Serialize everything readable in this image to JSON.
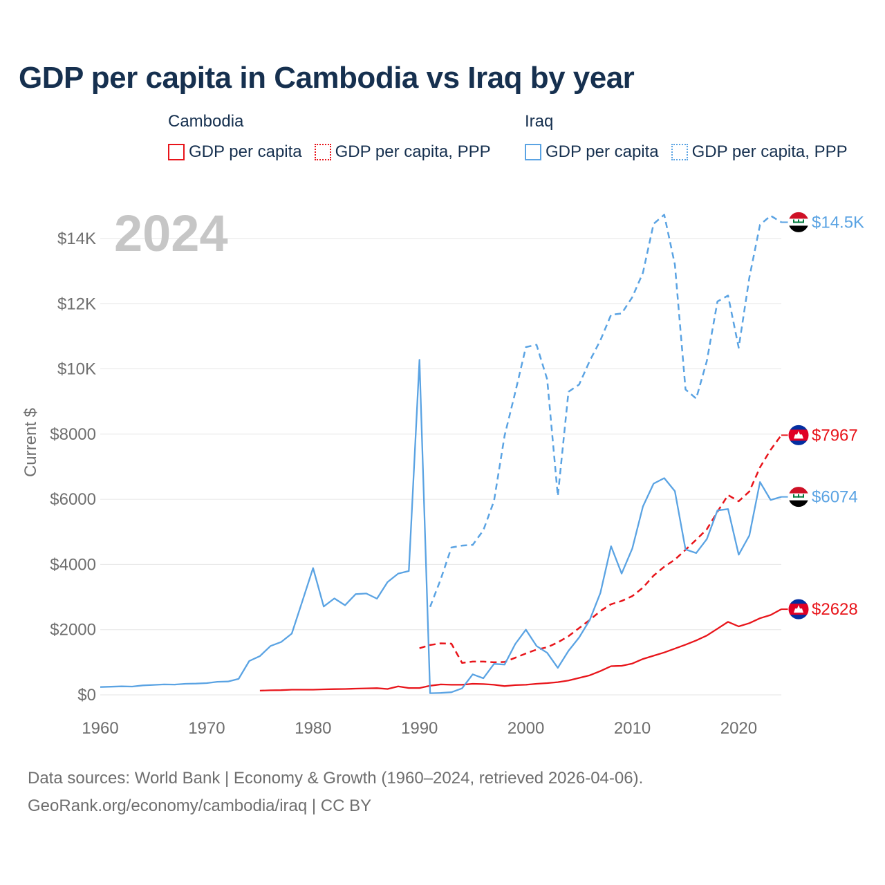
{
  "chart_data": {
    "type": "line",
    "title": "GDP per capita in Cambodia vs Iraq by year",
    "year_label": "2024",
    "ylabel": "Current $",
    "xlabel": "",
    "xlim": [
      1960,
      2024
    ],
    "ylim": [
      0,
      14500
    ],
    "x_ticks": [
      1960,
      1970,
      1980,
      1990,
      2000,
      2010,
      2020
    ],
    "y_ticks": [
      {
        "value": 0,
        "label": "$0"
      },
      {
        "value": 2000,
        "label": "$2000"
      },
      {
        "value": 4000,
        "label": "$4000"
      },
      {
        "value": 6000,
        "label": "$6000"
      },
      {
        "value": 8000,
        "label": "$8000"
      },
      {
        "value": 10000,
        "label": "$10K"
      },
      {
        "value": 12000,
        "label": "$12K"
      },
      {
        "value": 14000,
        "label": "$14K"
      }
    ],
    "legend_groups": [
      {
        "name": "Cambodia",
        "color": "#e8141a",
        "items": [
          "GDP per capita",
          "GDP per capita, PPP"
        ]
      },
      {
        "name": "Iraq",
        "color": "#5aa3e3",
        "items": [
          "GDP per capita",
          "GDP per capita, PPP"
        ]
      }
    ],
    "series": [
      {
        "name": "Cambodia GDP per capita",
        "country": "Cambodia",
        "color": "#e8141a",
        "style": "solid",
        "end_label": "$2628",
        "x": [
          1975,
          1976,
          1977,
          1978,
          1979,
          1980,
          1981,
          1982,
          1983,
          1984,
          1985,
          1986,
          1987,
          1988,
          1989,
          1990,
          1991,
          1992,
          1993,
          1994,
          1995,
          1996,
          1997,
          1998,
          1999,
          2000,
          2001,
          2002,
          2003,
          2004,
          2005,
          2006,
          2007,
          2008,
          2009,
          2010,
          2011,
          2012,
          2013,
          2014,
          2015,
          2016,
          2017,
          2018,
          2019,
          2020,
          2021,
          2022,
          2023,
          2024
        ],
        "y": [
          130,
          140,
          145,
          160,
          160,
          160,
          170,
          175,
          180,
          190,
          200,
          205,
          180,
          260,
          210,
          210,
          280,
          320,
          310,
          310,
          340,
          330,
          310,
          270,
          300,
          310,
          340,
          360,
          390,
          440,
          520,
          600,
          730,
          880,
          890,
          960,
          1100,
          1200,
          1300,
          1420,
          1540,
          1670,
          1820,
          2030,
          2240,
          2100,
          2200,
          2350,
          2450,
          2628
        ]
      },
      {
        "name": "Cambodia GDP per capita, PPP",
        "country": "Cambodia",
        "color": "#e8141a",
        "style": "dashed",
        "end_label": "$7967",
        "x": [
          1990,
          1991,
          1992,
          1993,
          1994,
          1995,
          1996,
          1997,
          1998,
          1999,
          2000,
          2001,
          2002,
          2003,
          2004,
          2005,
          2006,
          2007,
          2008,
          2009,
          2010,
          2011,
          2012,
          2013,
          2014,
          2015,
          2016,
          2017,
          2018,
          2019,
          2020,
          2021,
          2022,
          2023,
          2024
        ],
        "y": [
          1430,
          1530,
          1580,
          1570,
          980,
          1020,
          1020,
          1000,
          1010,
          1140,
          1270,
          1390,
          1460,
          1610,
          1800,
          2050,
          2300,
          2570,
          2780,
          2880,
          3030,
          3290,
          3660,
          3930,
          4150,
          4450,
          4760,
          5080,
          5620,
          6130,
          5940,
          6240,
          6980,
          7520,
          7967
        ]
      },
      {
        "name": "Iraq GDP per capita",
        "country": "Iraq",
        "color": "#5aa3e3",
        "style": "solid",
        "end_label": "$6074",
        "x": [
          1960,
          1961,
          1962,
          1963,
          1964,
          1965,
          1966,
          1967,
          1968,
          1969,
          1970,
          1971,
          1972,
          1973,
          1974,
          1975,
          1976,
          1977,
          1978,
          1979,
          1980,
          1981,
          1982,
          1983,
          1984,
          1985,
          1986,
          1987,
          1988,
          1989,
          1990,
          1991,
          1992,
          1993,
          1994,
          1995,
          1996,
          1997,
          1998,
          1999,
          2000,
          2001,
          2002,
          2003,
          2004,
          2005,
          2006,
          2007,
          2008,
          2009,
          2010,
          2011,
          2012,
          2013,
          2014,
          2015,
          2016,
          2017,
          2018,
          2019,
          2020,
          2021,
          2022,
          2023,
          2024
        ],
        "y": [
          240,
          250,
          260,
          255,
          290,
          305,
          320,
          315,
          340,
          345,
          360,
          400,
          410,
          490,
          1040,
          1190,
          1500,
          1620,
          1880,
          2880,
          3890,
          2710,
          2960,
          2750,
          3090,
          3110,
          2950,
          3460,
          3720,
          3800,
          10280,
          50,
          60,
          80,
          200,
          630,
          510,
          950,
          930,
          1560,
          2000,
          1500,
          1290,
          830,
          1350,
          1760,
          2300,
          3130,
          4560,
          3720,
          4490,
          5780,
          6480,
          6650,
          6250,
          4460,
          4350,
          4780,
          5660,
          5700,
          4300,
          4890,
          6530,
          5980,
          6074
        ]
      },
      {
        "name": "Iraq GDP per capita, PPP",
        "country": "Iraq",
        "color": "#5aa3e3",
        "style": "dashed",
        "end_label": "$14.5K",
        "x": [
          1991,
          1992,
          1993,
          1994,
          1995,
          1996,
          1997,
          1998,
          1999,
          2000,
          2001,
          2002,
          2003,
          2004,
          2005,
          2006,
          2007,
          2008,
          2009,
          2010,
          2011,
          2012,
          2013,
          2014,
          2015,
          2016,
          2017,
          2018,
          2019,
          2020,
          2021,
          2022,
          2023,
          2024
        ],
        "y": [
          2700,
          3550,
          4520,
          4580,
          4600,
          5050,
          5950,
          7950,
          9280,
          10670,
          10740,
          9680,
          6100,
          9300,
          9520,
          10250,
          10880,
          11660,
          11700,
          12200,
          12950,
          14450,
          14730,
          13200,
          9370,
          9090,
          10240,
          12070,
          12250,
          10650,
          12800,
          14420,
          14700,
          14500
        ]
      }
    ]
  },
  "footer": {
    "line1": "Data sources: World Bank | Economy & Growth (1960–2024, retrieved 2026-04-06).",
    "line2": "GeoRank.org/economy/cambodia/iraq | CC BY"
  }
}
